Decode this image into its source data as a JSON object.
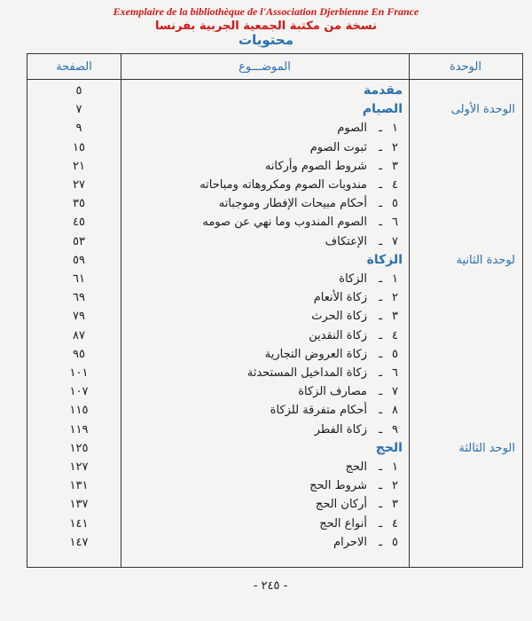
{
  "header": {
    "note_fr": "Exemplaire de la bibliothèque de l'Association Djerbienne En France",
    "note_ar": "نسخة من مكتبة الجمعية الجربية بفرنسا",
    "title": "محتويات"
  },
  "table": {
    "columns": {
      "unit": "الوحدة",
      "topic": "الموضـــوع",
      "page": "الصفحة"
    },
    "units": [
      {
        "label": "الوحدة الأولى",
        "items": [
          {
            "topic": "مقدمة",
            "page": "٥"
          },
          {
            "topic": "الصيام",
            "page": "٧"
          },
          {
            "number": "١",
            "topic": "الصوم",
            "page": "٩"
          },
          {
            "number": "٢",
            "topic": "ثبوت الصوم",
            "page": "١٥"
          },
          {
            "number": "٣",
            "topic": "شروط الصوم وأركانه",
            "page": "٢١"
          },
          {
            "number": "٤",
            "topic": "مندوبات الصوم ومكروهاته ومباحاته",
            "page": "٢٧"
          },
          {
            "number": "٥",
            "topic": "أحكام مبيحات الإفطار وموجباته",
            "page": "٣٥"
          },
          {
            "number": "٦",
            "topic": "الصوم المندوب وما نهي عن صومه",
            "page": "٤٥"
          },
          {
            "number": "٧",
            "topic": "الإعتكاف",
            "page": "٥٣"
          }
        ]
      },
      {
        "label": "لوحدة الثانية",
        "items": [
          {
            "topic": "الزكاة",
            "page": "٥٩"
          },
          {
            "number": "١",
            "topic": "الزكاة",
            "page": "٦١"
          },
          {
            "number": "٢",
            "topic": "زكاة الأنعام",
            "page": "٦٩"
          },
          {
            "number": "٣",
            "topic": "زكاة الحرث",
            "page": "٧٩"
          },
          {
            "number": "٤",
            "topic": "زكاة النقدين",
            "page": "٨٧"
          },
          {
            "number": "٥",
            "topic": "زكاة العروض التجارية",
            "page": "٩٥"
          },
          {
            "number": "٦",
            "topic": "زكاة المداخيل المستحدثة",
            "page": "١٠١"
          },
          {
            "number": "٧",
            "topic": "مصارف الزكاة",
            "page": "١٠٧"
          },
          {
            "number": "٨",
            "topic": "أحكام متفرقة للزكاة",
            "page": "١١٥"
          },
          {
            "number": "٩",
            "topic": "زكاة الفطر",
            "page": "١١٩"
          }
        ]
      },
      {
        "label": "الوحد الثالثة",
        "items": [
          {
            "topic": "الحج",
            "page": "١٢٥"
          },
          {
            "number": "١",
            "topic": "الحج",
            "page": "١٢٧"
          },
          {
            "number": "٢",
            "topic": "شروط الحج",
            "page": "١٣١"
          },
          {
            "number": "٣",
            "topic": "أركان الحج",
            "page": "١٣٧"
          },
          {
            "number": "٤",
            "topic": "أنواع الحج",
            "page": "١٤١"
          },
          {
            "number": "٥",
            "topic": "الاحرام",
            "page": "١٤٧"
          }
        ]
      }
    ]
  },
  "footer": {
    "page_number": "- ٢٤٥ -"
  }
}
